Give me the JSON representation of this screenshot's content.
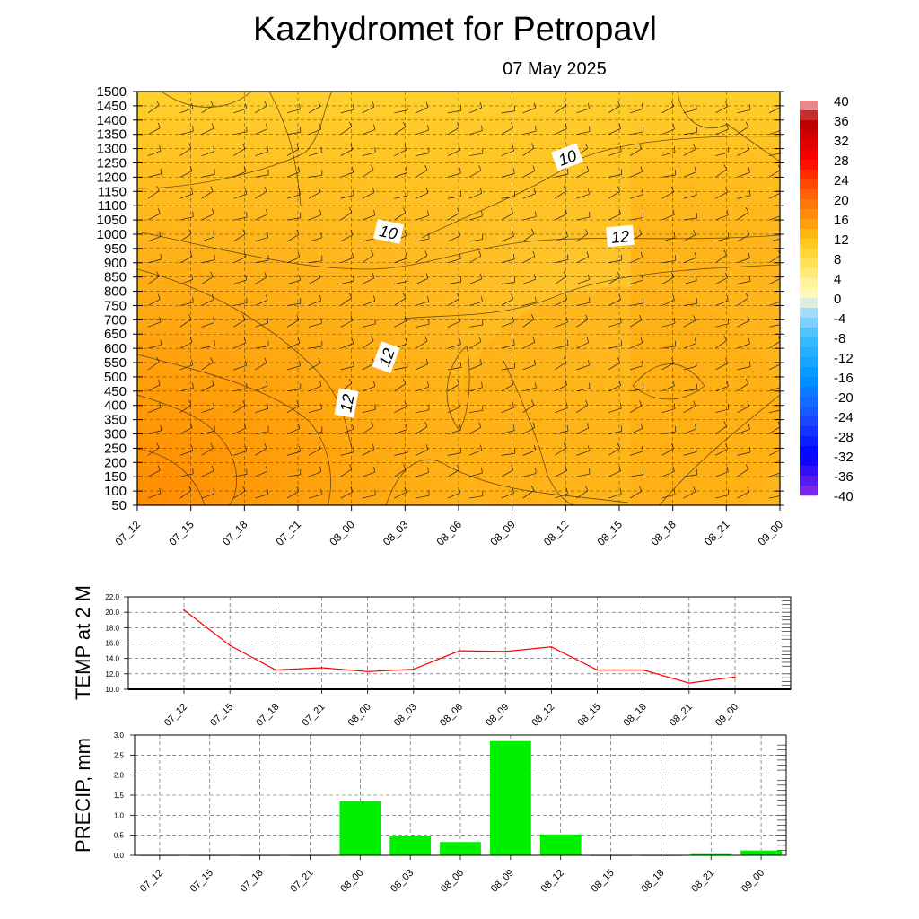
{
  "title": "Kazhydromet  for Petropavl",
  "date": "07 May 2025",
  "time_labels": [
    "07_12",
    "07_15",
    "07_18",
    "07_21",
    "08_00",
    "08_03",
    "08_06",
    "08_09",
    "08_12",
    "08_15",
    "08_18",
    "08_21",
    "09_00"
  ],
  "colors": {
    "fill_warm": "#ff9a08",
    "fill_mid": "#ffb41a",
    "fill_light": "#ffcf2a",
    "temp_line": "#ff0000",
    "precip_bar": "#00f000"
  },
  "chart_data": [
    {
      "type": "heatmap",
      "title": "Kazhydromet  for Petropavl",
      "subtitle": "07 May 2025",
      "x": [
        "07_12",
        "07_15",
        "07_18",
        "07_21",
        "08_00",
        "08_03",
        "08_06",
        "08_09",
        "08_12",
        "08_15",
        "08_18",
        "08_21",
        "09_00"
      ],
      "y_levels": [
        50,
        100,
        150,
        200,
        250,
        300,
        350,
        400,
        450,
        500,
        550,
        600,
        650,
        700,
        750,
        800,
        850,
        900,
        950,
        1000,
        1050,
        1100,
        1150,
        1200,
        1250,
        1300,
        1350,
        1400,
        1450,
        1500
      ],
      "ylim": [
        50,
        1500
      ],
      "grid": true,
      "contour_labels": [
        "10",
        "10",
        "12",
        "12",
        "12"
      ],
      "colorbar": {
        "ticks": [
          "40",
          "36",
          "32",
          "28",
          "24",
          "20",
          "16",
          "12",
          "8",
          "4",
          "0",
          "-4",
          "-8",
          "-12",
          "-16",
          "-20",
          "-24",
          "-28",
          "-32",
          "-36",
          "-40"
        ],
        "range": [
          -40,
          40
        ],
        "placement": "right"
      }
    },
    {
      "type": "line",
      "ylabel": "TEMP at 2 M",
      "x": [
        "07_12",
        "07_15",
        "07_18",
        "07_21",
        "08_00",
        "08_03",
        "08_06",
        "08_09",
        "08_12",
        "08_15",
        "08_18",
        "08_21",
        "09_00"
      ],
      "values": [
        20.3,
        15.7,
        12.5,
        12.8,
        12.3,
        12.6,
        15.0,
        14.9,
        15.5,
        12.5,
        12.5,
        10.8,
        11.6
      ],
      "ylim": [
        10,
        22
      ],
      "yticks": [
        "22.0",
        "20.0",
        "18.0",
        "16.0",
        "14.0",
        "12.0",
        "10.0"
      ],
      "grid": true
    },
    {
      "type": "bar",
      "ylabel": "PRECIP, mm",
      "categories": [
        "07_12",
        "07_15",
        "07_18",
        "07_21",
        "08_00",
        "08_03",
        "08_06",
        "08_09",
        "08_12",
        "08_15",
        "08_18",
        "08_21",
        "09_00"
      ],
      "values": [
        0.0,
        0.0,
        0.0,
        0.0,
        1.35,
        0.48,
        0.33,
        2.85,
        0.52,
        0.0,
        0.0,
        0.03,
        0.12
      ],
      "ylim": [
        0,
        3
      ],
      "yticks": [
        "3.0",
        "2.5",
        "2.0",
        "1.5",
        "1.0",
        "0.5",
        "0.0"
      ],
      "grid": true
    }
  ]
}
